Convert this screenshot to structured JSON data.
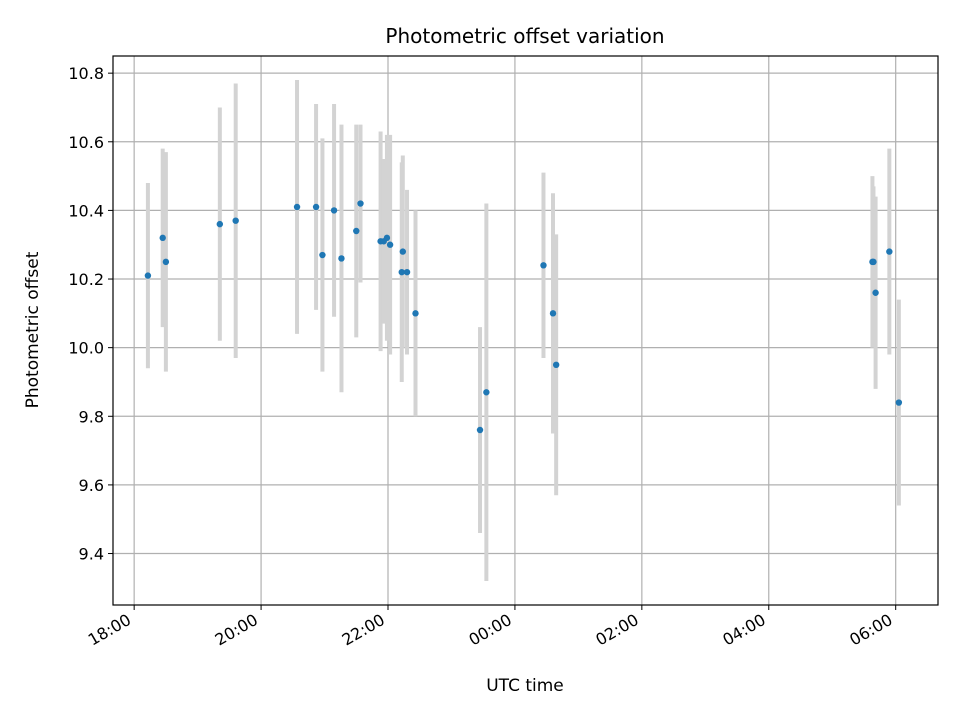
{
  "chart_data": {
    "type": "scatter",
    "title": "Photometric offset variation",
    "xlabel": "UTC time",
    "ylabel": "Photometric offset",
    "x_axis_type": "time",
    "x_range": [
      "17:40",
      "06:40"
    ],
    "x_ticks": [
      "18:00",
      "20:00",
      "22:00",
      "00:00",
      "02:00",
      "04:00",
      "06:00"
    ],
    "ylim": [
      9.25,
      10.85
    ],
    "y_ticks": [
      "9.4",
      "9.6",
      "9.8",
      "10.0",
      "10.2",
      "10.4",
      "10.6",
      "10.8"
    ],
    "grid": true,
    "point_color": "#1f77b4",
    "errorbar_color": "#d3d3d3",
    "points": [
      {
        "x": "18:13",
        "y": 10.21,
        "err": 0.27
      },
      {
        "x": "18:27",
        "y": 10.32,
        "err": 0.26
      },
      {
        "x": "18:30",
        "y": 10.25,
        "err": 0.32
      },
      {
        "x": "19:21",
        "y": 10.36,
        "err": 0.34
      },
      {
        "x": "19:36",
        "y": 10.37,
        "err": 0.4
      },
      {
        "x": "20:34",
        "y": 10.41,
        "err": 0.37
      },
      {
        "x": "20:52",
        "y": 10.41,
        "err": 0.3
      },
      {
        "x": "20:58",
        "y": 10.27,
        "err": 0.34
      },
      {
        "x": "21:09",
        "y": 10.4,
        "err": 0.31
      },
      {
        "x": "21:16",
        "y": 10.26,
        "err": 0.39
      },
      {
        "x": "21:30",
        "y": 10.34,
        "err": 0.31
      },
      {
        "x": "21:34",
        "y": 10.42,
        "err": 0.23
      },
      {
        "x": "21:53",
        "y": 10.31,
        "err": 0.32
      },
      {
        "x": "21:56",
        "y": 10.31,
        "err": 0.24
      },
      {
        "x": "21:59",
        "y": 10.32,
        "err": 0.3
      },
      {
        "x": "22:02",
        "y": 10.3,
        "err": 0.32
      },
      {
        "x": "22:13",
        "y": 10.22,
        "err": 0.32
      },
      {
        "x": "22:14",
        "y": 10.28,
        "err": 0.28
      },
      {
        "x": "22:18",
        "y": 10.22,
        "err": 0.24
      },
      {
        "x": "22:26",
        "y": 10.1,
        "err": 0.3
      },
      {
        "x": "23:27",
        "y": 9.76,
        "err": 0.3
      },
      {
        "x": "23:33",
        "y": 9.87,
        "err": 0.55
      },
      {
        "x": "00:27",
        "y": 10.24,
        "err": 0.27
      },
      {
        "x": "00:36",
        "y": 10.1,
        "err": 0.35
      },
      {
        "x": "00:39",
        "y": 9.95,
        "err": 0.38
      },
      {
        "x": "05:38",
        "y": 10.25,
        "err": 0.25
      },
      {
        "x": "05:39",
        "y": 10.25,
        "err": 0.22
      },
      {
        "x": "05:41",
        "y": 10.16,
        "err": 0.28
      },
      {
        "x": "05:54",
        "y": 10.28,
        "err": 0.3
      },
      {
        "x": "06:03",
        "y": 9.84,
        "err": 0.3
      }
    ]
  }
}
